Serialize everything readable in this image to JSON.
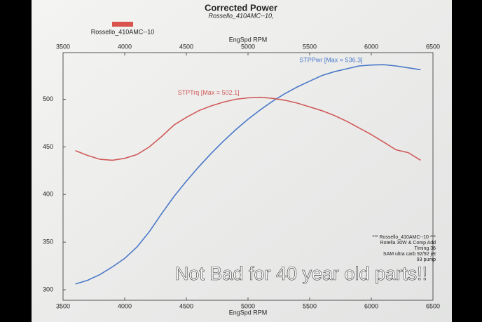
{
  "chart_data": {
    "type": "line",
    "title": "Corrected Power",
    "subtitle": "Rossello_410AMC--10,",
    "legend_label": "Rossello_410AMC--10",
    "legend_color": "#d9534f",
    "xlabel": "EngSpd RPM",
    "x": [
      3600,
      3700,
      3800,
      3900,
      4000,
      4100,
      4200,
      4300,
      4400,
      4500,
      4600,
      4700,
      4800,
      4900,
      5000,
      5100,
      5200,
      5300,
      5400,
      5500,
      5600,
      5700,
      5800,
      5900,
      6000,
      6100,
      6200,
      6300,
      6400
    ],
    "series": [
      {
        "name": "STPPwr [Max = 536.3]",
        "color": "#4a78c8",
        "values": [
          306,
          310,
          316,
          324,
          333,
          345,
          361,
          380,
          398,
          414,
          429,
          443,
          456,
          468,
          479,
          489,
          498,
          506,
          513,
          519,
          525,
          529,
          532,
          535,
          536,
          536.3,
          535,
          533,
          531
        ]
      },
      {
        "name": "STPTrq [Max = 502.1]",
        "color": "#d05a5a",
        "values": [
          446,
          441,
          437,
          436,
          438,
          442,
          450,
          461,
          473,
          481,
          488,
          493,
          497,
          500,
          501.5,
          502.1,
          501,
          499,
          496,
          492,
          488,
          483,
          477,
          470,
          463,
          455,
          447,
          444,
          436
        ]
      }
    ],
    "xlim": [
      3500,
      6500
    ],
    "xticks": [
      3500,
      4000,
      4500,
      5000,
      5500,
      6000,
      6500
    ],
    "ylim": [
      289,
      549
    ],
    "yticks": [
      300,
      350,
      400,
      450,
      500
    ],
    "grid": false,
    "info": [
      "*** Rossello_410AMC--10 ***",
      "Rotella 30W & Comp Add",
      "Timing 36",
      "SAM ultra carb 92/92 jet",
      "93 pump"
    ],
    "caption": "Not Bad for 40 year old parts!!"
  }
}
